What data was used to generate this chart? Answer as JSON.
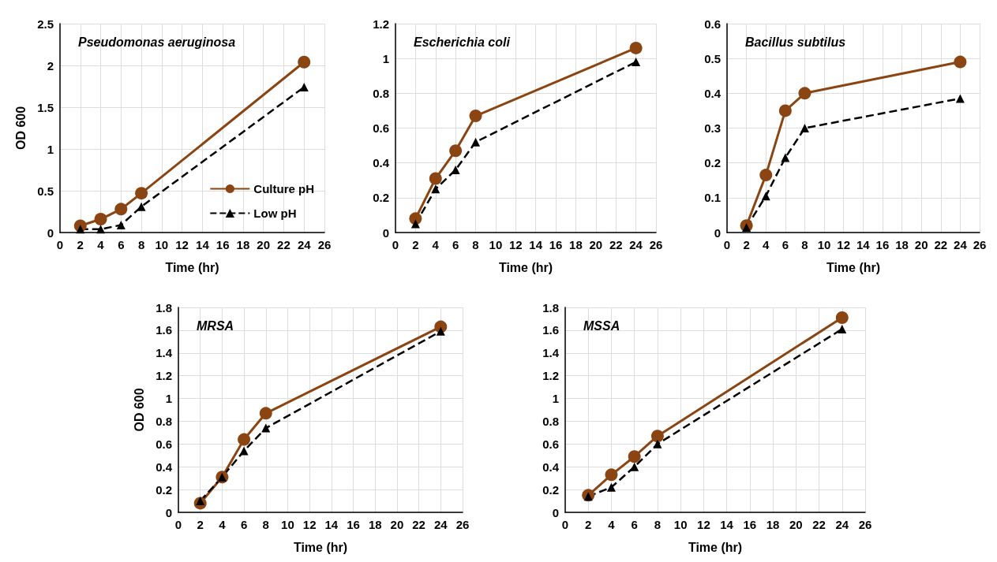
{
  "chart_data": [
    {
      "type": "line",
      "title": "Pseudomonas aeruginosa",
      "xlabel": "Time (hr)",
      "ylabel": "OD 600",
      "x": [
        2,
        4,
        6,
        8,
        24
      ],
      "xlim": [
        0,
        26
      ],
      "xticks": [
        0,
        2,
        4,
        6,
        8,
        10,
        12,
        14,
        16,
        18,
        20,
        22,
        24,
        26
      ],
      "ylim": [
        0,
        2.5
      ],
      "yticks": [
        0,
        0.5,
        1,
        1.5,
        2,
        2.5
      ],
      "grid": true,
      "legend": "bottom right",
      "series": [
        {
          "name": "Culture pH",
          "color": "#8b4513",
          "marker": "circle",
          "line_style": "solid",
          "values": [
            0.08,
            0.16,
            0.28,
            0.47,
            2.04
          ]
        },
        {
          "name": "Low pH",
          "color": "#000000",
          "marker": "triangle",
          "line_style": "dashed",
          "values": [
            0.04,
            0.04,
            0.09,
            0.31,
            1.74
          ]
        }
      ]
    },
    {
      "type": "line",
      "title": "Escherichia coli",
      "xlabel": "Time (hr)",
      "x": [
        2,
        4,
        6,
        8,
        24
      ],
      "xlim": [
        0,
        26
      ],
      "xticks": [
        0,
        2,
        4,
        6,
        8,
        10,
        12,
        14,
        16,
        18,
        20,
        22,
        24,
        26
      ],
      "ylim": [
        0,
        1.2
      ],
      "yticks": [
        0,
        0.2,
        0.4,
        0.6,
        0.8,
        1,
        1.2
      ],
      "grid": true,
      "series": [
        {
          "color": "#8b4513",
          "marker": "circle",
          "line_style": "solid",
          "values": [
            0.08,
            0.31,
            0.47,
            0.67,
            1.06
          ]
        },
        {
          "color": "#000000",
          "marker": "triangle",
          "line_style": "dashed",
          "values": [
            0.05,
            0.25,
            0.36,
            0.52,
            0.98
          ]
        }
      ]
    },
    {
      "type": "line",
      "title": "Bacillus subtilus",
      "xlabel": "Time (hr)",
      "x": [
        2,
        4,
        6,
        8,
        24
      ],
      "xlim": [
        0,
        26
      ],
      "xticks": [
        0,
        2,
        4,
        6,
        8,
        10,
        12,
        14,
        16,
        18,
        20,
        22,
        24,
        26
      ],
      "ylim": [
        0,
        0.6
      ],
      "yticks": [
        0,
        0.1,
        0.2,
        0.3,
        0.4,
        0.5,
        0.6
      ],
      "grid": true,
      "series": [
        {
          "color": "#8b4513",
          "marker": "circle",
          "line_style": "solid",
          "values": [
            0.02,
            0.165,
            0.35,
            0.4,
            0.49
          ]
        },
        {
          "color": "#000000",
          "marker": "triangle",
          "line_style": "dashed",
          "values": [
            0.015,
            0.105,
            0.215,
            0.3,
            0.385
          ]
        }
      ]
    },
    {
      "type": "line",
      "title": "MRSA",
      "xlabel": "Time (hr)",
      "ylabel": "OD 600",
      "x": [
        2,
        4,
        6,
        8,
        24
      ],
      "xlim": [
        0,
        26
      ],
      "xticks": [
        0,
        2,
        4,
        6,
        8,
        10,
        12,
        14,
        16,
        18,
        20,
        22,
        24,
        26
      ],
      "ylim": [
        0,
        1.8
      ],
      "yticks": [
        0,
        0.2,
        0.4,
        0.6,
        0.8,
        1,
        1.2,
        1.4,
        1.6,
        1.8
      ],
      "grid": true,
      "series": [
        {
          "color": "#8b4513",
          "marker": "circle",
          "line_style": "solid",
          "values": [
            0.08,
            0.31,
            0.64,
            0.87,
            1.63
          ]
        },
        {
          "color": "#000000",
          "marker": "triangle",
          "line_style": "dashed",
          "values": [
            0.1,
            0.31,
            0.54,
            0.74,
            1.59
          ]
        }
      ]
    },
    {
      "type": "line",
      "title": "MSSA",
      "xlabel": "Time (hr)",
      "x": [
        2,
        4,
        6,
        8,
        24
      ],
      "xlim": [
        0,
        26
      ],
      "xticks": [
        0,
        2,
        4,
        6,
        8,
        10,
        12,
        14,
        16,
        18,
        20,
        22,
        24,
        26
      ],
      "ylim": [
        0,
        1.8
      ],
      "yticks": [
        0,
        0.2,
        0.4,
        0.6,
        0.8,
        1,
        1.2,
        1.4,
        1.6,
        1.8
      ],
      "grid": true,
      "series": [
        {
          "color": "#8b4513",
          "marker": "circle",
          "line_style": "solid",
          "values": [
            0.15,
            0.33,
            0.49,
            0.67,
            1.71
          ]
        },
        {
          "color": "#000000",
          "marker": "triangle",
          "line_style": "dashed",
          "values": [
            0.14,
            0.22,
            0.4,
            0.6,
            1.61
          ]
        }
      ]
    }
  ]
}
